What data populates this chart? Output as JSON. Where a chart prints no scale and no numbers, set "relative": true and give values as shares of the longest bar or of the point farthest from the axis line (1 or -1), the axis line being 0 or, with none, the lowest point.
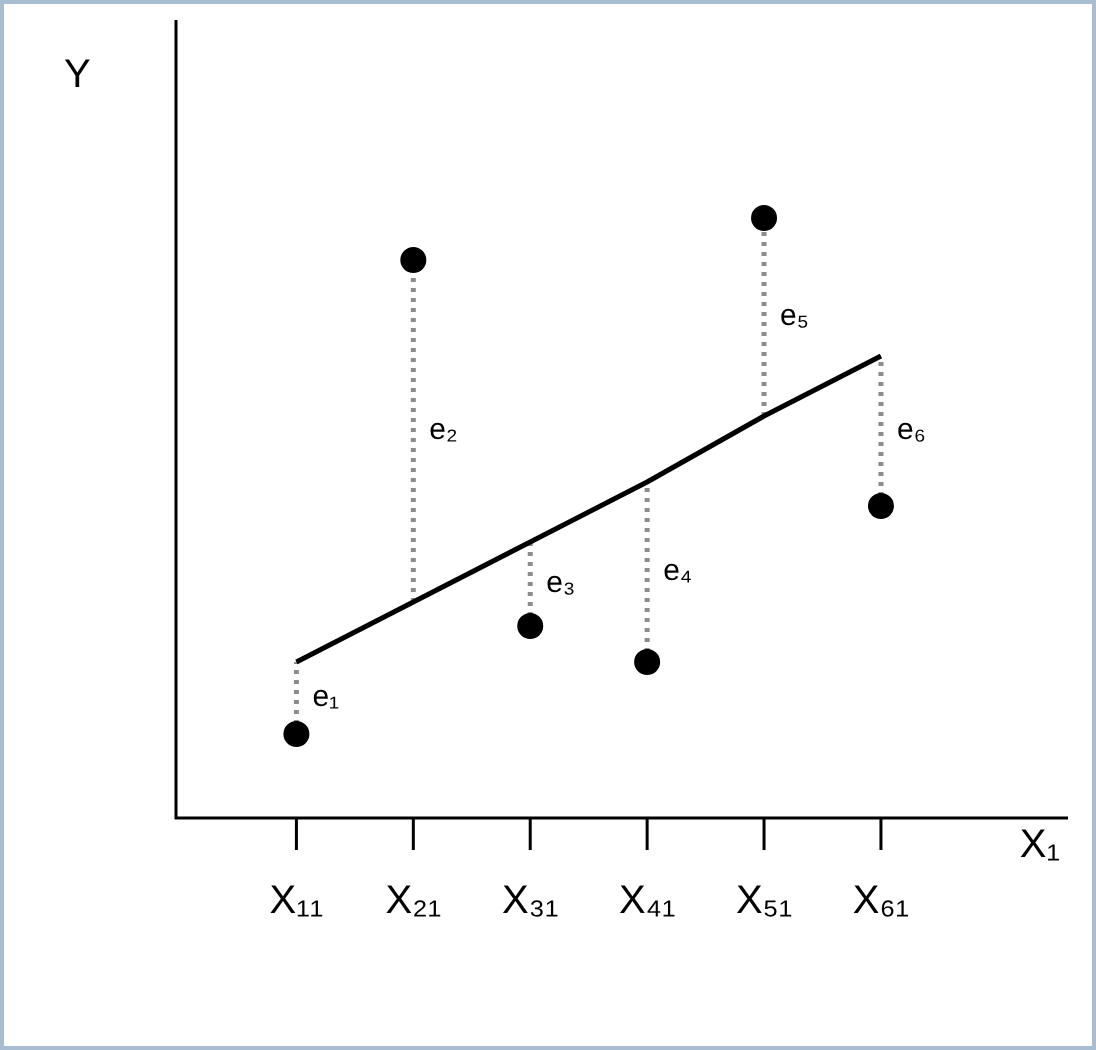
{
  "chart_data": {
    "type": "scatter",
    "relative": true,
    "ylabel": "Y",
    "xlabel": "X₁",
    "marker": "circle",
    "categories": [
      "X₁₁",
      "X₂₁",
      "X₃₁",
      "X₄₁",
      "X₅₁",
      "X₆₁"
    ],
    "series": [
      {
        "color": "#000000",
        "values": [
          0.14,
          0.93,
          0.32,
          0.26,
          1,
          0.52
        ]
      },
      {
        "type": "line",
        "color": "#000000",
        "marker": "none",
        "values": [
          0.26,
          0.36,
          0.46,
          0.56,
          0.67,
          0.77
        ]
      },
      {
        "type": "line",
        "color": "#8c8c8c",
        "marker": "none",
        "line_style": "dotted",
        "x": [
          "X₁₁",
          "X₁₁"
        ],
        "values": [
          0.14,
          0.26
        ]
      },
      {
        "type": "line",
        "color": "#8c8c8c",
        "marker": "none",
        "line_style": "dotted",
        "x": [
          "X₂₁",
          "X₂₁"
        ],
        "values": [
          0.36,
          0.93
        ]
      },
      {
        "type": "line",
        "color": "#8c8c8c",
        "marker": "none",
        "line_style": "dotted",
        "x": [
          "X₃₁",
          "X₃₁"
        ],
        "values": [
          0.32,
          0.46
        ]
      },
      {
        "type": "line",
        "color": "#8c8c8c",
        "marker": "none",
        "line_style": "dotted",
        "x": [
          "X₄₁",
          "X₄₁"
        ],
        "values": [
          0.26,
          0.56
        ]
      },
      {
        "type": "line",
        "color": "#8c8c8c",
        "marker": "none",
        "line_style": "dotted",
        "x": [
          "X₅₁",
          "X₅₁"
        ],
        "values": [
          0.67,
          1
        ]
      },
      {
        "type": "line",
        "color": "#8c8c8c",
        "marker": "none",
        "line_style": "dotted",
        "x": [
          "X₆₁",
          "X₆₁"
        ],
        "values": [
          0.52,
          0.77
        ]
      }
    ],
    "annotations": [
      "e₁",
      "e₂",
      "e₃",
      "e₄",
      "e₅",
      "e₆"
    ]
  }
}
